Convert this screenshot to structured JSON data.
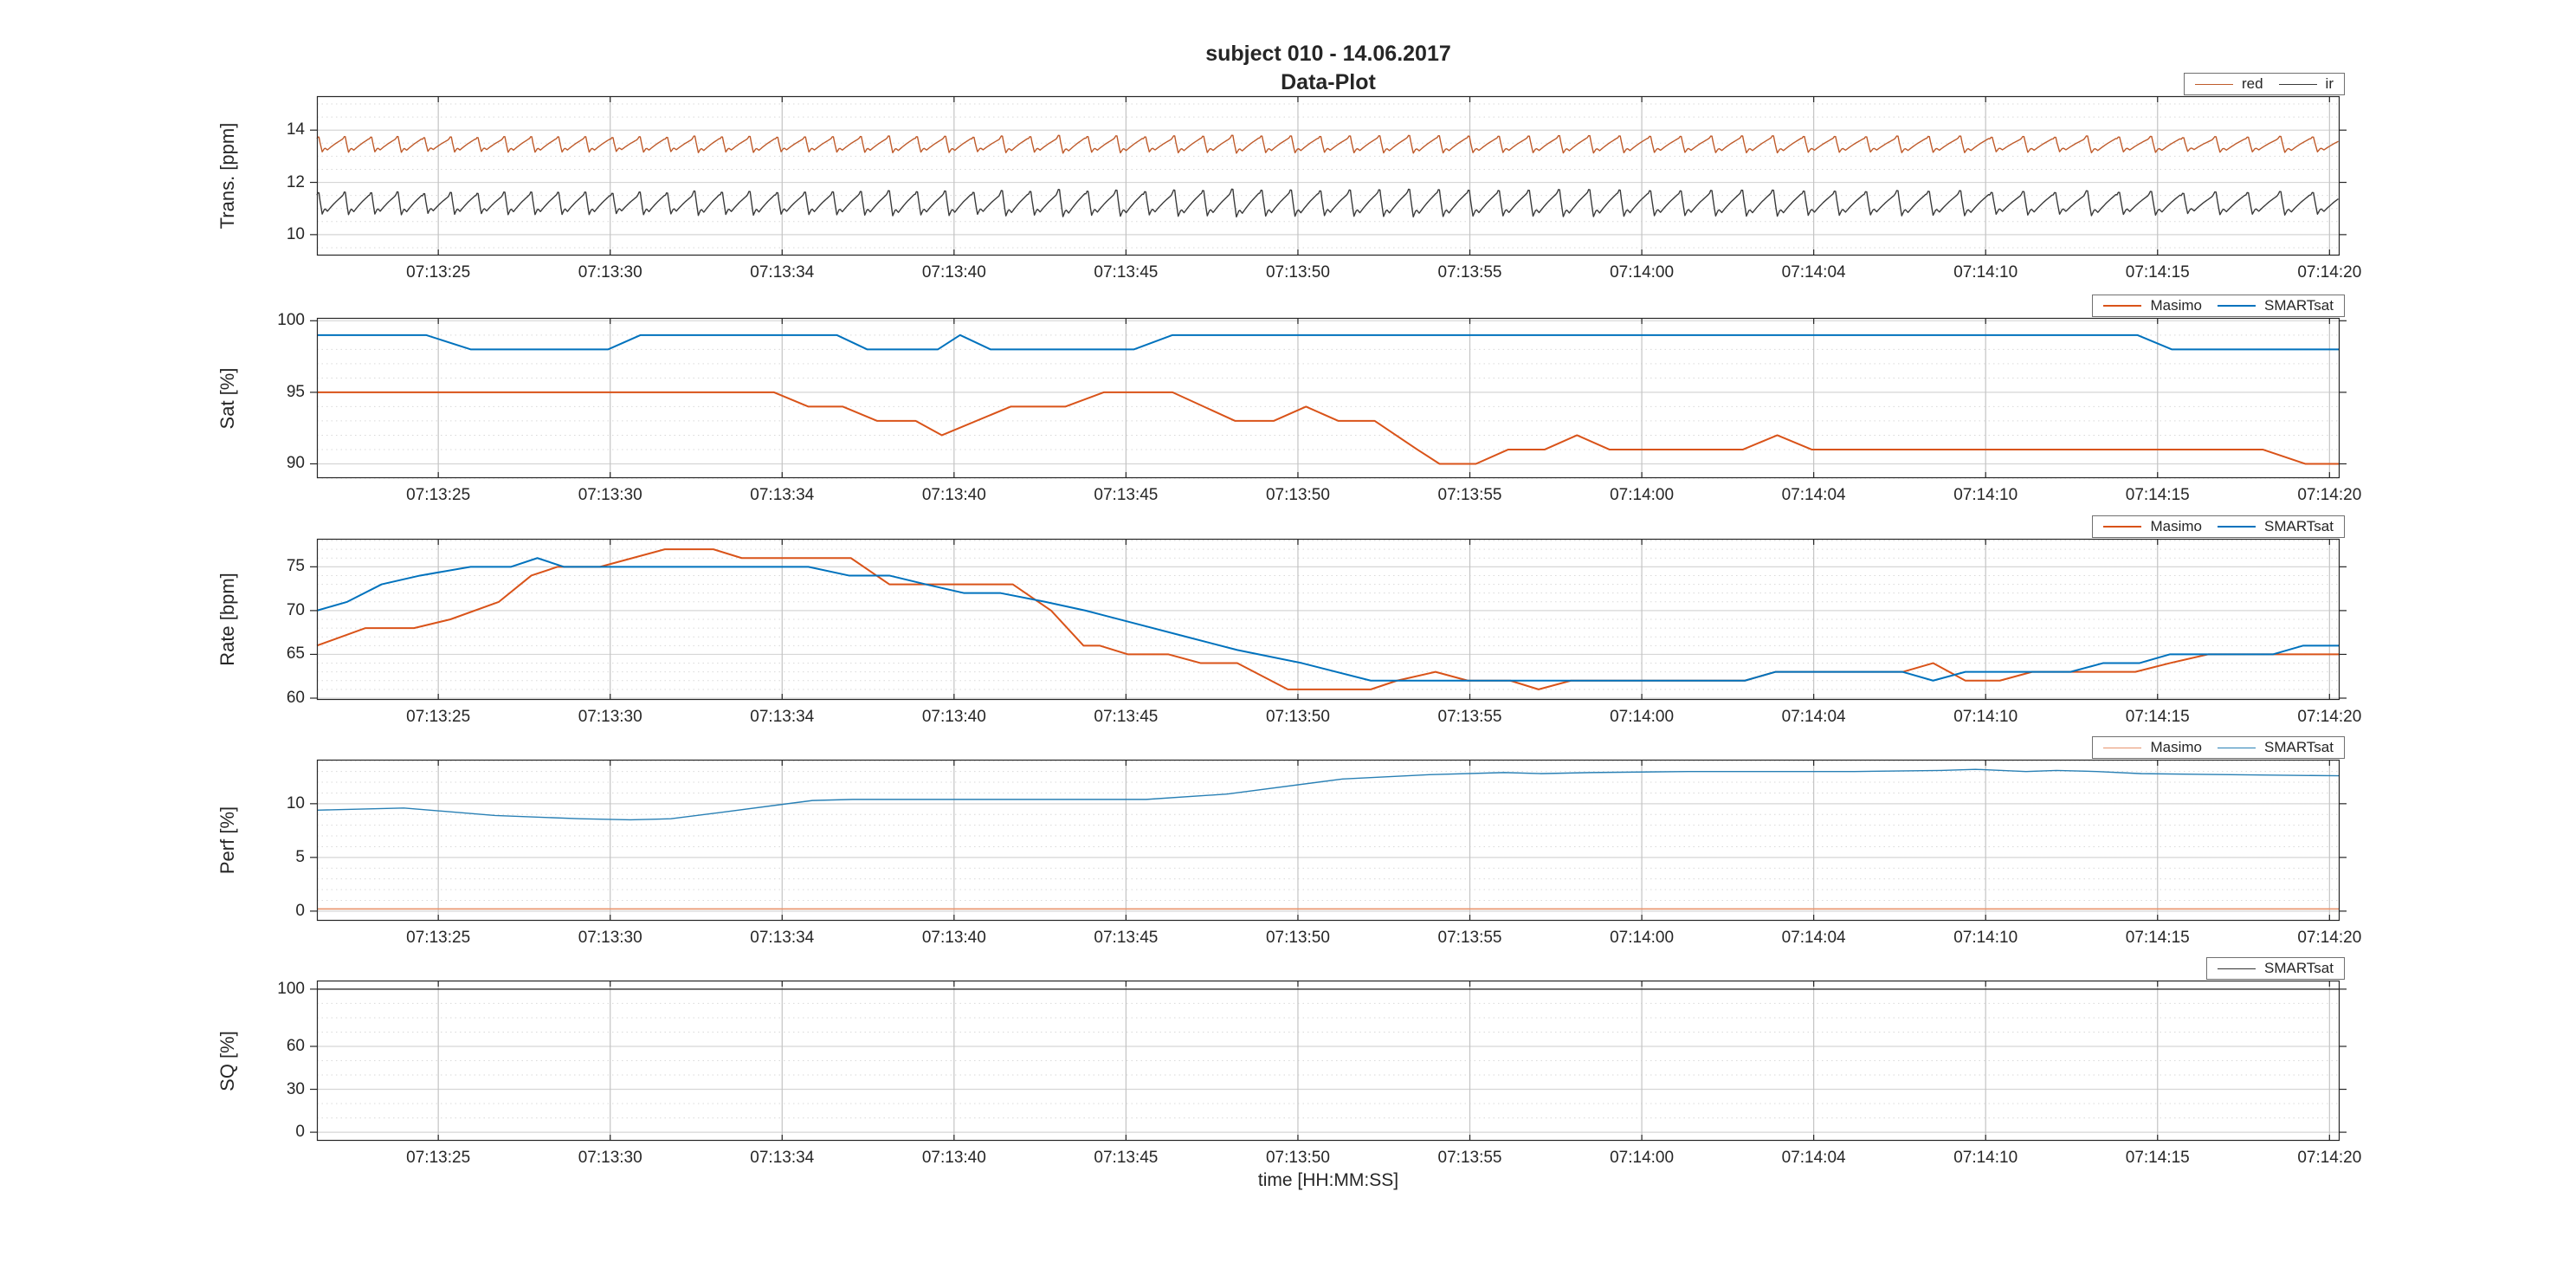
{
  "title": {
    "line1": "subject 010 - 14.06.2017",
    "line2": "Data-Plot"
  },
  "xlabel": "time [HH:MM:SS]",
  "palette": {
    "masimo_orange": "#D95319",
    "smartsat_blue": "#0072BD",
    "perf_orange": "#e8946e",
    "perf_blue": "#2980b5",
    "red_wave": "#bf5b2b",
    "ir_wave": "#3a3a3a",
    "sq_black": "#333333",
    "grid_major_v": "#c4c4c4",
    "grid_major_h": "#d6d6d6",
    "grid_minor": "#d9d9d9",
    "axis": "#262626"
  },
  "chart_data": {
    "type": "line",
    "x_axis": {
      "label": "time [HH:MM:SS]",
      "xlim_u": [
        0,
        100
      ],
      "tick_u": [
        6,
        14.5,
        23,
        31.5,
        40,
        48.5,
        57,
        65.5,
        74,
        82.5,
        91,
        99.5
      ],
      "tick_labels": [
        "07:13:25",
        "07:13:30",
        "07:13:34",
        "07:13:40",
        "07:13:45",
        "07:13:50",
        "07:13:55",
        "07:14:00",
        "07:14:04",
        "07:14:10",
        "07:14:15",
        "07:14:20"
      ]
    },
    "ppg_shape": [
      [
        0,
        0.5
      ],
      [
        0.07,
        0.72
      ],
      [
        0.13,
        0.1
      ],
      [
        0.2,
        -0.5
      ],
      [
        0.3,
        -0.2
      ],
      [
        0.4,
        -0.35
      ],
      [
        0.52,
        -0.15
      ],
      [
        0.7,
        0.12
      ],
      [
        1,
        0.5
      ]
    ],
    "subplots": [
      {
        "id": "trans",
        "ylabel": "Trans. [ppm]",
        "ylim": [
          9.2,
          15.3
        ],
        "yticks": [
          10,
          12,
          14
        ],
        "minor_step": 0.5,
        "legend": [
          {
            "label": "red",
            "color": "#bf5b2b",
            "lw": 1.4
          },
          {
            "label": "ir",
            "color": "#3a3a3a",
            "lw": 1.4
          }
        ],
        "series": [
          {
            "name": "red",
            "color": "#bf5b2b",
            "lw": 1.4,
            "generator": {
              "type": "ppg",
              "base": 13.42,
              "amp": 0.5,
              "period_u_start": 1.3,
              "period_u_end": 1.62,
              "mid_boost": 0.15
            }
          },
          {
            "name": "ir",
            "color": "#3a3a3a",
            "lw": 1.4,
            "generator": {
              "type": "ppg",
              "base": 11.15,
              "amp": 0.72,
              "period_u_start": 1.3,
              "period_u_end": 1.62,
              "mid_boost": 0.25
            }
          }
        ]
      },
      {
        "id": "sat",
        "ylabel": "Sat [%]",
        "ylim": [
          89,
          100.2
        ],
        "yticks": [
          90,
          95,
          100
        ],
        "minor_step": 1,
        "legend": [
          {
            "label": "Masimo",
            "color": "#D95319",
            "lw": 2
          },
          {
            "label": "SMARTsat",
            "color": "#0072BD",
            "lw": 2
          }
        ],
        "series": [
          {
            "name": "Masimo",
            "color": "#D95319",
            "lw": 2,
            "points": [
              [
                0,
                95
              ],
              [
                22.6,
                95
              ],
              [
                24.3,
                94
              ],
              [
                26,
                94
              ],
              [
                27.7,
                93
              ],
              [
                29.6,
                93
              ],
              [
                30.9,
                92
              ],
              [
                34.3,
                94
              ],
              [
                37,
                94
              ],
              [
                38.9,
                95
              ],
              [
                42.3,
                95
              ],
              [
                45.4,
                93
              ],
              [
                47.3,
                93
              ],
              [
                48.9,
                94
              ],
              [
                50.5,
                93
              ],
              [
                52.3,
                93
              ],
              [
                54.4,
                91
              ],
              [
                55.5,
                90
              ],
              [
                57.3,
                90
              ],
              [
                58.9,
                91
              ],
              [
                60.7,
                91
              ],
              [
                62.3,
                92
              ],
              [
                63.9,
                91
              ],
              [
                70.5,
                91
              ],
              [
                72.2,
                92
              ],
              [
                73.9,
                91
              ],
              [
                96.2,
                91
              ],
              [
                98.3,
                90
              ],
              [
                100,
                90
              ]
            ]
          },
          {
            "name": "SMARTsat",
            "color": "#0072BD",
            "lw": 2,
            "points": [
              [
                0,
                99
              ],
              [
                5.4,
                99
              ],
              [
                7.6,
                98
              ],
              [
                14.4,
                98
              ],
              [
                16,
                99
              ],
              [
                25.7,
                99
              ],
              [
                27.2,
                98
              ],
              [
                30.7,
                98
              ],
              [
                31.8,
                99
              ],
              [
                33.3,
                98
              ],
              [
                40.4,
                98
              ],
              [
                42.3,
                99
              ],
              [
                90,
                99
              ],
              [
                91.7,
                98
              ],
              [
                100,
                98
              ]
            ]
          }
        ]
      },
      {
        "id": "rate",
        "ylabel": "Rate [bpm]",
        "ylim": [
          59.8,
          78.2
        ],
        "yticks": [
          60,
          65,
          70,
          75
        ],
        "minor_step": 1,
        "legend": [
          {
            "label": "Masimo",
            "color": "#D95319",
            "lw": 2
          },
          {
            "label": "SMARTsat",
            "color": "#0072BD",
            "lw": 2
          }
        ],
        "series": [
          {
            "name": "Masimo",
            "color": "#D95319",
            "lw": 2,
            "points": [
              [
                0,
                66
              ],
              [
                2.4,
                68
              ],
              [
                4.8,
                68
              ],
              [
                6.6,
                69
              ],
              [
                9,
                71
              ],
              [
                10.6,
                74
              ],
              [
                11.9,
                75
              ],
              [
                14,
                75
              ],
              [
                15.6,
                76
              ],
              [
                17.2,
                77
              ],
              [
                19.6,
                77
              ],
              [
                21,
                76
              ],
              [
                26.4,
                76
              ],
              [
                28.3,
                73
              ],
              [
                34.4,
                73
              ],
              [
                36.3,
                70
              ],
              [
                37.9,
                66
              ],
              [
                38.7,
                66
              ],
              [
                40.1,
                65
              ],
              [
                42.1,
                65
              ],
              [
                43.7,
                64
              ],
              [
                45.5,
                64
              ],
              [
                48,
                61
              ],
              [
                52.1,
                61
              ],
              [
                53.4,
                62
              ],
              [
                55.3,
                63
              ],
              [
                56.9,
                62
              ],
              [
                59,
                62
              ],
              [
                60.4,
                61
              ],
              [
                62,
                62
              ],
              [
                70.6,
                62
              ],
              [
                72.1,
                63
              ],
              [
                78.4,
                63
              ],
              [
                79.9,
                64
              ],
              [
                81.5,
                62
              ],
              [
                83.2,
                62
              ],
              [
                84.8,
                63
              ],
              [
                89.9,
                63
              ],
              [
                91.6,
                64
              ],
              [
                93.5,
                65
              ],
              [
                100,
                65
              ]
            ]
          },
          {
            "name": "SMARTsat",
            "color": "#0072BD",
            "lw": 2,
            "points": [
              [
                0,
                70
              ],
              [
                1.5,
                71
              ],
              [
                3.2,
                73
              ],
              [
                5.1,
                74
              ],
              [
                7.6,
                75
              ],
              [
                9.6,
                75
              ],
              [
                10.9,
                76
              ],
              [
                12.2,
                75
              ],
              [
                24.3,
                75
              ],
              [
                26.3,
                74
              ],
              [
                28.3,
                74
              ],
              [
                30.1,
                73
              ],
              [
                32,
                72
              ],
              [
                33.8,
                72
              ],
              [
                36,
                71
              ],
              [
                38,
                70
              ],
              [
                40.5,
                68.5
              ],
              [
                43,
                67
              ],
              [
                45.5,
                65.5
              ],
              [
                48.7,
                64
              ],
              [
                52.1,
                62
              ],
              [
                70.6,
                62
              ],
              [
                72.1,
                63
              ],
              [
                78.4,
                63
              ],
              [
                79.9,
                62
              ],
              [
                81.5,
                63
              ],
              [
                86.7,
                63
              ],
              [
                88.3,
                64
              ],
              [
                90.1,
                64
              ],
              [
                91.6,
                65
              ],
              [
                96.7,
                65
              ],
              [
                98.2,
                66
              ],
              [
                100,
                66
              ]
            ]
          }
        ]
      },
      {
        "id": "perf",
        "ylabel": "Perf [%]",
        "ylim": [
          -0.9,
          14.1
        ],
        "yticks": [
          0,
          5,
          10
        ],
        "minor_step": 1,
        "legend": [
          {
            "label": "Masimo",
            "color": "#e8946e",
            "lw": 1.4
          },
          {
            "label": "SMARTsat",
            "color": "#2980b5",
            "lw": 1.4
          }
        ],
        "series": [
          {
            "name": "Masimo",
            "color": "#e8946e",
            "lw": 1.6,
            "points": [
              [
                0,
                0.2
              ],
              [
                100,
                0.2
              ]
            ]
          },
          {
            "name": "SMARTsat",
            "color": "#2980b5",
            "lw": 1.4,
            "points": [
              [
                0,
                9.4
              ],
              [
                4.3,
                9.6
              ],
              [
                8.8,
                8.9
              ],
              [
                13,
                8.6
              ],
              [
                15.5,
                8.5
              ],
              [
                17.5,
                8.6
              ],
              [
                20,
                9.2
              ],
              [
                24.5,
                10.3
              ],
              [
                26.5,
                10.4
              ],
              [
                39.9,
                10.4
              ],
              [
                41,
                10.4
              ],
              [
                45,
                10.9
              ],
              [
                50.7,
                12.3
              ],
              [
                55,
                12.7
              ],
              [
                58.7,
                12.9
              ],
              [
                60.5,
                12.8
              ],
              [
                63,
                12.9
              ],
              [
                67.8,
                13
              ],
              [
                72,
                13
              ],
              [
                76,
                13
              ],
              [
                80.3,
                13.1
              ],
              [
                82,
                13.2
              ],
              [
                84.5,
                13
              ],
              [
                86,
                13.1
              ],
              [
                88,
                13
              ],
              [
                90.2,
                12.8
              ],
              [
                94.6,
                12.7
              ],
              [
                100,
                12.6
              ]
            ]
          }
        ]
      },
      {
        "id": "sq",
        "ylabel": "SQ [%]",
        "ylim": [
          -6,
          106
        ],
        "yticks": [
          0,
          30,
          60,
          100
        ],
        "minor_step": 10,
        "legend": [
          {
            "label": "SMARTsat",
            "color": "#333333",
            "lw": 1.2
          }
        ],
        "series": [
          {
            "name": "SMARTsat",
            "color": "#333333",
            "lw": 1.4,
            "points": [
              [
                0,
                100
              ],
              [
                100,
                100
              ]
            ]
          }
        ]
      }
    ]
  }
}
